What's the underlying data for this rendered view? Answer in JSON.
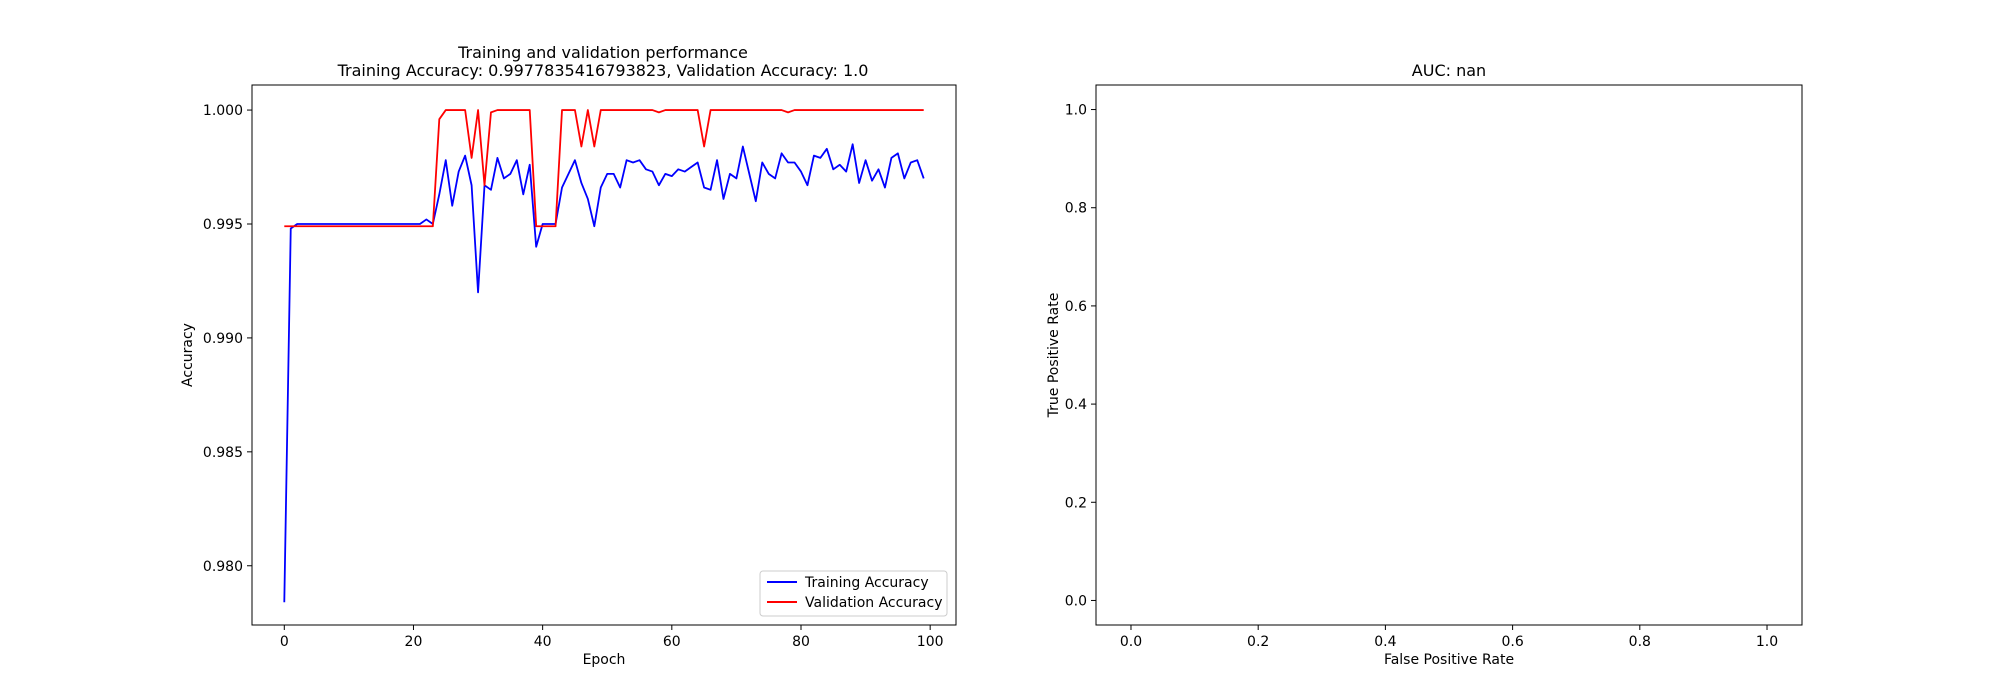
{
  "figure": {
    "colors": {
      "training": "#0000ff",
      "validation": "#ff0000",
      "axes": "#000000",
      "background": "#ffffff"
    }
  },
  "chart_data": [
    {
      "type": "line",
      "title": "Training and validation performance",
      "subtitle": "Training Accuracy: 0.9977835416793823, Validation Accuracy: 1.0",
      "xlabel": "Epoch",
      "ylabel": "Accuracy",
      "xlim": [
        -5,
        104
      ],
      "ylim": [
        0.9774,
        1.0011
      ],
      "xticks": [
        0,
        20,
        40,
        60,
        80,
        100
      ],
      "xtick_labels": [
        "0",
        "20",
        "40",
        "60",
        "80",
        "100"
      ],
      "yticks": [
        0.98,
        0.985,
        0.99,
        0.995,
        1.0
      ],
      "ytick_labels": [
        "0.980",
        "0.985",
        "0.990",
        "0.995",
        "1.000"
      ],
      "grid": false,
      "legend_position": "lower-right",
      "legend": [
        "Training Accuracy",
        "Validation Accuracy"
      ],
      "series": [
        {
          "name": "Training Accuracy",
          "color": "#0000ff",
          "x": [
            0,
            1,
            2,
            3,
            4,
            5,
            6,
            7,
            8,
            9,
            10,
            11,
            12,
            13,
            14,
            15,
            16,
            17,
            18,
            19,
            20,
            21,
            22,
            23,
            24,
            25,
            26,
            27,
            28,
            29,
            30,
            31,
            32,
            33,
            34,
            35,
            36,
            37,
            38,
            39,
            40,
            41,
            42,
            43,
            44,
            45,
            46,
            47,
            48,
            49,
            50,
            51,
            52,
            53,
            54,
            55,
            56,
            57,
            58,
            59,
            60,
            61,
            62,
            63,
            64,
            65,
            66,
            67,
            68,
            69,
            70,
            71,
            72,
            73,
            74,
            75,
            76,
            77,
            78,
            79,
            80,
            81,
            82,
            83,
            84,
            85,
            86,
            87,
            88,
            89,
            90,
            91,
            92,
            93,
            94,
            95,
            96,
            97,
            98,
            99
          ],
          "values": [
            0.9784,
            0.9948,
            0.995,
            0.995,
            0.995,
            0.995,
            0.995,
            0.995,
            0.995,
            0.995,
            0.995,
            0.995,
            0.995,
            0.995,
            0.995,
            0.995,
            0.995,
            0.995,
            0.995,
            0.995,
            0.995,
            0.995,
            0.9952,
            0.995,
            0.9963,
            0.9978,
            0.9958,
            0.9973,
            0.998,
            0.9967,
            0.992,
            0.9967,
            0.9965,
            0.9979,
            0.997,
            0.9972,
            0.9978,
            0.9963,
            0.9976,
            0.994,
            0.995,
            0.995,
            0.995,
            0.9966,
            0.9972,
            0.9978,
            0.9968,
            0.9961,
            0.9949,
            0.9966,
            0.9972,
            0.9972,
            0.9966,
            0.9978,
            0.9977,
            0.9978,
            0.9974,
            0.9973,
            0.9967,
            0.9972,
            0.9971,
            0.9974,
            0.9973,
            0.9975,
            0.9977,
            0.9966,
            0.9965,
            0.9978,
            0.9961,
            0.9972,
            0.997,
            0.9984,
            0.9972,
            0.996,
            0.9977,
            0.9972,
            0.997,
            0.9981,
            0.9977,
            0.9977,
            0.9973,
            0.9967,
            0.998,
            0.9979,
            0.9983,
            0.9974,
            0.9976,
            0.9973,
            0.9985,
            0.9968,
            0.9978,
            0.9969,
            0.9974,
            0.9966,
            0.9979,
            0.9981,
            0.997,
            0.9977,
            0.9978,
            0.997
          ]
        },
        {
          "name": "Validation Accuracy",
          "color": "#ff0000",
          "x": [
            0,
            1,
            2,
            3,
            4,
            5,
            6,
            7,
            8,
            9,
            10,
            11,
            12,
            13,
            14,
            15,
            16,
            17,
            18,
            19,
            20,
            21,
            22,
            23,
            24,
            25,
            26,
            27,
            28,
            29,
            30,
            31,
            32,
            33,
            34,
            35,
            36,
            37,
            38,
            39,
            40,
            41,
            42,
            43,
            44,
            45,
            46,
            47,
            48,
            49,
            50,
            51,
            52,
            53,
            54,
            55,
            56,
            57,
            58,
            59,
            60,
            61,
            62,
            63,
            64,
            65,
            66,
            67,
            68,
            69,
            70,
            71,
            72,
            73,
            74,
            75,
            76,
            77,
            78,
            79,
            80,
            81,
            82,
            83,
            84,
            85,
            86,
            87,
            88,
            89,
            90,
            91,
            92,
            93,
            94,
            95,
            96,
            97,
            98,
            99
          ],
          "values": [
            0.9949,
            0.9949,
            0.9949,
            0.9949,
            0.9949,
            0.9949,
            0.9949,
            0.9949,
            0.9949,
            0.9949,
            0.9949,
            0.9949,
            0.9949,
            0.9949,
            0.9949,
            0.9949,
            0.9949,
            0.9949,
            0.9949,
            0.9949,
            0.9949,
            0.9949,
            0.9949,
            0.9949,
            0.9996,
            1.0,
            1.0,
            1.0,
            1.0,
            0.9979,
            1.0,
            0.9967,
            0.9999,
            1.0,
            1.0,
            1.0,
            1.0,
            1.0,
            1.0,
            0.9949,
            0.9949,
            0.9949,
            0.9949,
            1.0,
            1.0,
            1.0,
            0.9984,
            1.0,
            0.9984,
            1.0,
            1.0,
            1.0,
            1.0,
            1.0,
            1.0,
            1.0,
            1.0,
            1.0,
            0.9999,
            1.0,
            1.0,
            1.0,
            1.0,
            1.0,
            1.0,
            0.9984,
            1.0,
            1.0,
            1.0,
            1.0,
            1.0,
            1.0,
            1.0,
            1.0,
            1.0,
            1.0,
            1.0,
            1.0,
            0.9999,
            1.0,
            1.0,
            1.0,
            1.0,
            1.0,
            1.0,
            1.0,
            1.0,
            1.0,
            1.0,
            1.0,
            1.0,
            1.0,
            1.0,
            1.0,
            1.0,
            1.0,
            1.0,
            1.0,
            1.0,
            1.0
          ]
        }
      ]
    },
    {
      "type": "line",
      "title": "AUC: nan",
      "xlabel": "False Positive Rate",
      "ylabel": "True Positive Rate",
      "xlim": [
        -0.055,
        1.055
      ],
      "ylim": [
        -0.05,
        1.05
      ],
      "xticks": [
        0,
        0.2,
        0.4,
        0.6,
        0.8,
        1.0
      ],
      "xtick_labels": [
        "0.0",
        "0.2",
        "0.4",
        "0.6",
        "0.8",
        "1.0"
      ],
      "yticks": [
        0,
        0.2,
        0.4,
        0.6,
        0.8,
        1.0
      ],
      "ytick_labels": [
        "0.0",
        "0.2",
        "0.4",
        "0.6",
        "0.8",
        "1.0"
      ],
      "grid": false,
      "series": []
    }
  ]
}
